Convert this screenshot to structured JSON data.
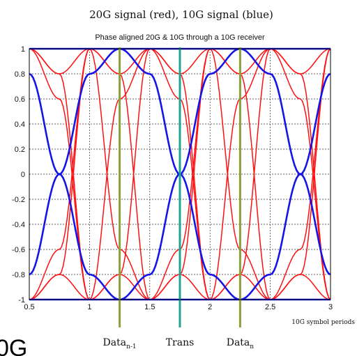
{
  "page": {
    "heading": "20G signal (red), 10G signal (blue)",
    "corner_text": "0G"
  },
  "chart_data": {
    "type": "line",
    "title": "Phase aligned 20G & 10G through a 10G receiver",
    "xlabel": "10G symbol periods",
    "ylabel": "",
    "xlim": [
      0.5,
      3
    ],
    "ylim": [
      -1,
      1
    ],
    "x_ticks": [
      0.5,
      1,
      1.5,
      2,
      2.5,
      3
    ],
    "x_tick_labels": [
      "0.5",
      "1",
      "1.5",
      "2",
      "2.5",
      "3"
    ],
    "y_ticks": [
      -1,
      -0.8,
      -0.6,
      -0.4,
      -0.2,
      0,
      0.2,
      0.4,
      0.6,
      0.8,
      1
    ],
    "y_tick_labels": [
      "-1",
      "-0.8",
      "-0.6",
      "-0.4",
      "-0.2",
      "0",
      "0.2",
      "0.4",
      "0.6",
      "0.8",
      "1"
    ],
    "grid": true,
    "series": [
      {
        "color": "#ff1010",
        "signal": "20G",
        "period": 0.5,
        "traces": [
          {
            "x": [
              0.5,
              0.75,
              1.0,
              1.25,
              1.5,
              1.75,
              2.0,
              2.25,
              2.5,
              2.75,
              3.0
            ],
            "y": [
              1,
              0.6,
              -1,
              0.6,
              1,
              0.6,
              -1,
              0.6,
              1,
              0.6,
              -1
            ]
          },
          {
            "x": [
              0.5,
              0.75,
              1.0,
              1.25,
              1.5,
              1.75,
              2.0,
              2.25,
              2.5,
              2.75,
              3.0
            ],
            "y": [
              -1,
              -0.6,
              1,
              -0.6,
              -1,
              -0.6,
              1,
              -0.6,
              -1,
              -0.6,
              1
            ]
          },
          {
            "x": [
              0.5,
              0.75,
              1.0,
              1.25,
              1.5,
              1.75,
              2.0,
              2.25,
              2.5,
              2.75,
              3.0
            ],
            "y": [
              1,
              0.8,
              1,
              0.8,
              1,
              0.8,
              1,
              0.8,
              1,
              0.8,
              1
            ]
          },
          {
            "x": [
              0.5,
              0.75,
              1.0,
              1.25,
              1.5,
              1.75,
              2.0,
              2.25,
              2.5,
              2.75,
              3.0
            ],
            "y": [
              -1,
              -0.8,
              -1,
              -0.8,
              -1,
              -0.8,
              -1,
              -0.8,
              -1,
              -0.8,
              -1
            ]
          },
          {
            "x": [
              0.5,
              0.75,
              1.0,
              1.25,
              1.5,
              1.75,
              2.0,
              2.25,
              2.5,
              2.75,
              3.0
            ],
            "y": [
              1,
              0.8,
              -1,
              -0.8,
              1,
              0.8,
              -1,
              -0.8,
              1,
              0.8,
              -1
            ]
          },
          {
            "x": [
              0.5,
              0.75,
              1.0,
              1.25,
              1.5,
              1.75,
              2.0,
              2.25,
              2.5,
              2.75,
              3.0
            ],
            "y": [
              -1,
              -0.8,
              1,
              0.8,
              -1,
              -0.8,
              1,
              0.8,
              -1,
              -0.8,
              1
            ]
          }
        ]
      },
      {
        "color": "#1515e6",
        "signal": "10G",
        "period": 1.0,
        "traces": [
          {
            "x": [
              0.5,
              0.75,
              1.0,
              1.25,
              1.5,
              1.75,
              2.0,
              2.25,
              2.5,
              2.75,
              3.0
            ],
            "y": [
              1,
              1,
              1,
              1,
              1,
              1,
              1,
              1,
              1,
              1,
              1
            ]
          },
          {
            "x": [
              0.5,
              0.75,
              1.0,
              1.25,
              1.5,
              1.75,
              2.0,
              2.25,
              2.5,
              2.75,
              3.0
            ],
            "y": [
              -1,
              -1,
              -1,
              -1,
              -1,
              -1,
              -1,
              -1,
              -1,
              -1,
              -1
            ]
          },
          {
            "x": [
              0.5,
              0.75,
              1.0,
              1.25,
              1.5,
              1.75,
              2.0,
              2.25,
              2.5,
              2.75,
              3.0
            ],
            "y": [
              0.8,
              0,
              -0.8,
              -1,
              -0.8,
              0,
              0.8,
              1,
              0.8,
              0,
              -0.8
            ]
          },
          {
            "x": [
              0.5,
              0.75,
              1.0,
              1.25,
              1.5,
              1.75,
              2.0,
              2.25,
              2.5,
              2.75,
              3.0
            ],
            "y": [
              -0.8,
              0,
              0.8,
              1,
              0.8,
              0,
              -0.8,
              -1,
              -0.8,
              0,
              0.8
            ]
          }
        ]
      }
    ],
    "markers": [
      {
        "x": 1.25,
        "color": "#8aa03a",
        "label": "Data",
        "sub": "n-1"
      },
      {
        "x": 1.75,
        "color": "#1fa58f",
        "label": "Trans",
        "sub": ""
      },
      {
        "x": 2.25,
        "color": "#8aa03a",
        "label": "Data",
        "sub": "n"
      }
    ]
  }
}
